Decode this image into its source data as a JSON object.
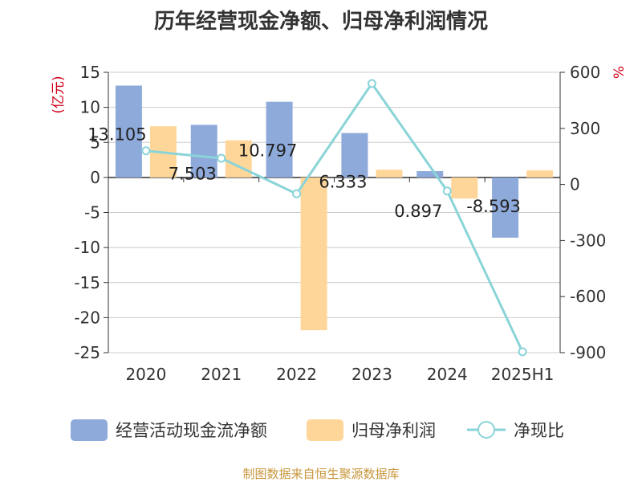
{
  "chart_data": {
    "type": "bar",
    "title": "历年经营现金净额、归母净利润情况",
    "categories": [
      "2020",
      "2021",
      "2022",
      "2023",
      "2024",
      "2025H1"
    ],
    "y_left": {
      "label": "(亿元)",
      "min": -25,
      "max": 15,
      "ticks": [
        15,
        10,
        5,
        0,
        -5,
        -10,
        -15,
        -20,
        -25
      ]
    },
    "y_right": {
      "label": "%",
      "min": -900,
      "max": 600,
      "ticks": [
        600,
        300,
        0,
        -300,
        -600,
        -900
      ]
    },
    "series": [
      {
        "name": "经营活动现金流净额",
        "type": "bar",
        "axis": "left",
        "color": "#8eaadb",
        "values": [
          13.105,
          7.503,
          10.797,
          6.333,
          0.897,
          -8.593
        ],
        "labels": [
          "13.105",
          "7.503",
          "10.797",
          "6.333",
          "0.897",
          "-8.593"
        ]
      },
      {
        "name": "归母净利润",
        "type": "bar",
        "axis": "left",
        "color": "#ffd699",
        "values": [
          7.3,
          5.3,
          -21.8,
          1.1,
          -3.0,
          1.0
        ]
      },
      {
        "name": "净现比",
        "type": "line",
        "axis": "right",
        "color": "#8ad4d8",
        "values": [
          180,
          140,
          -50,
          540,
          -35,
          -895
        ]
      }
    ],
    "grid": true,
    "legend_position": "bottom"
  },
  "source": "制图数据来自恒生聚源数据库"
}
